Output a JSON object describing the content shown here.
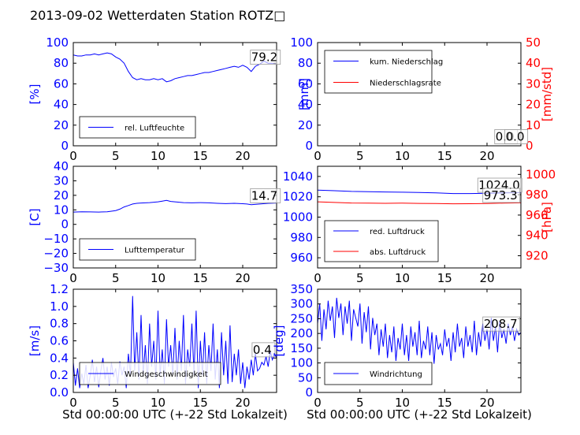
{
  "title": "2013-09-02 Wetterdaten Station ROTZ□",
  "colors": {
    "blue": "#0000ff",
    "red": "#ff0000",
    "black": "#000000"
  },
  "chart_data": [
    {
      "type": "line",
      "id": "humidity",
      "ylabel": "[%]",
      "xlim": [
        0,
        24
      ],
      "ylim": [
        0,
        100
      ],
      "xticks": [
        "0",
        "5",
        "10",
        "15",
        "20"
      ],
      "yticks": [
        "0",
        "20",
        "40",
        "60",
        "80",
        "100"
      ],
      "legend": {
        "position": "lower-left",
        "entries": [
          "rel. Luftfeuchte"
        ]
      },
      "annotations": [
        {
          "text": "79.2",
          "x": 21,
          "y": 82
        }
      ],
      "series": [
        {
          "name": "rel. Luftfeuchte",
          "color": "#0000ff",
          "x": [
            0,
            0.5,
            1,
            1.5,
            2,
            2.5,
            3,
            3.5,
            4,
            4.5,
            5,
            5.5,
            6,
            6.5,
            7,
            7.5,
            8,
            8.5,
            9,
            9.5,
            10,
            10.5,
            11,
            11.5,
            12,
            12.5,
            13,
            13.5,
            14,
            14.5,
            15,
            15.5,
            16,
            16.5,
            17,
            17.5,
            18,
            18.5,
            19,
            19.5,
            20,
            20.5,
            21,
            21.5,
            22,
            22.5,
            23,
            23.5,
            24
          ],
          "y": [
            88,
            87,
            87,
            88,
            88,
            89,
            88,
            89,
            90,
            89,
            86,
            84,
            80,
            72,
            66,
            64,
            65,
            64,
            64,
            65,
            64,
            65,
            62,
            63,
            65,
            66,
            67,
            68,
            68,
            69,
            70,
            71,
            71,
            72,
            73,
            74,
            75,
            76,
            77,
            76,
            78,
            76,
            72,
            77,
            79,
            82,
            80,
            80,
            79
          ]
        }
      ]
    },
    {
      "type": "line",
      "id": "precipitation",
      "ylabel": "[mm]",
      "y2label": "[mm/std]",
      "xlim": [
        0,
        24
      ],
      "ylim": [
        0,
        100
      ],
      "y2lim": [
        0,
        50
      ],
      "xticks": [
        "0",
        "5",
        "10",
        "15",
        "20"
      ],
      "yticks": [
        "0",
        "20",
        "40",
        "60",
        "80",
        "100"
      ],
      "y2ticks": [
        "0",
        "10",
        "20",
        "30",
        "40",
        "50"
      ],
      "legend": {
        "position": "upper-left",
        "entries": [
          "kum. Niederschlag",
          "Niederschlagsrate"
        ]
      },
      "annotations": [
        {
          "text": "0.0",
          "x": 21,
          "y": 5
        },
        {
          "text": "0.0",
          "x": 22.2,
          "y": 5
        }
      ],
      "series": [
        {
          "name": "kum. Niederschlag",
          "color": "#0000ff",
          "x": [
            0,
            24
          ],
          "y": [
            0,
            0
          ]
        },
        {
          "name": "Niederschlagsrate",
          "color": "#ff0000",
          "x": [
            0,
            24
          ],
          "y": [
            0,
            0
          ]
        }
      ]
    },
    {
      "type": "line",
      "id": "temperature",
      "ylabel": "[C]",
      "xlim": [
        0,
        24
      ],
      "ylim": [
        -30,
        40
      ],
      "xticks": [
        "0",
        "5",
        "10",
        "15",
        "20"
      ],
      "yticks": [
        "−30",
        "−20",
        "−10",
        "0",
        "10",
        "20",
        "30",
        "40"
      ],
      "legend": {
        "position": "lower-left",
        "entries": [
          "Lufttemperatur"
        ]
      },
      "annotations": [
        {
          "text": "14.7",
          "x": 21,
          "y": 17
        }
      ],
      "series": [
        {
          "name": "Lufttemperatur",
          "color": "#0000ff",
          "x": [
            0,
            1,
            2,
            3,
            4,
            5,
            5.5,
            6,
            6.5,
            7,
            7.5,
            8,
            9,
            10,
            10.5,
            11,
            11.5,
            12,
            13,
            14,
            15,
            16,
            17,
            18,
            19,
            20,
            20.5,
            21,
            22,
            23,
            24
          ],
          "y": [
            8.5,
            8.7,
            8.6,
            8.5,
            8.7,
            9.5,
            10.5,
            12,
            13,
            14,
            14.5,
            14.7,
            15,
            15.5,
            16,
            16.5,
            15.8,
            15.5,
            15,
            14.8,
            15,
            14.8,
            14.5,
            14.3,
            14.5,
            14.2,
            14,
            13.5,
            14,
            14.5,
            14.7
          ]
        }
      ]
    },
    {
      "type": "line",
      "id": "pressure",
      "y2label": "[hPa]",
      "xlim": [
        0,
        24
      ],
      "ylim": [
        950,
        1050
      ],
      "y2lim": [
        908,
        1008
      ],
      "xticks": [
        "0",
        "5",
        "10",
        "15",
        "20"
      ],
      "yticks": [
        "960",
        "980",
        "1000",
        "1020",
        "1040"
      ],
      "y2ticks": [
        "920",
        "940",
        "960",
        "980",
        "1000"
      ],
      "legend": {
        "position": "lower-left",
        "entries": [
          "red. Luftdruck",
          "abs. Luftdruck"
        ]
      },
      "annotations": [
        {
          "text": "1024.0",
          "x": 19,
          "y": 1027.5
        },
        {
          "text": "973.3",
          "x": 19.6,
          "y": 1017.5
        }
      ],
      "series": [
        {
          "name": "red. Luftdruck",
          "color": "#0000ff",
          "x": [
            0,
            2,
            4,
            6,
            8,
            10,
            12,
            14,
            16,
            18,
            20,
            22,
            24
          ],
          "y": [
            1026.5,
            1026,
            1025.3,
            1025,
            1024.7,
            1024.5,
            1024.3,
            1023.8,
            1023.2,
            1023.2,
            1023.5,
            1023.8,
            1024
          ]
        },
        {
          "name": "abs. Luftdruck",
          "color": "#ff0000",
          "x": [
            0,
            2,
            4,
            6,
            8,
            10,
            12,
            14,
            16,
            18,
            20,
            22,
            24
          ],
          "y": [
            1015,
            1014.4,
            1013.9,
            1013.8,
            1013.6,
            1013.8,
            1013.5,
            1013.3,
            1013.1,
            1013.2,
            1013.3,
            1013.8,
            1014
          ]
        }
      ]
    },
    {
      "type": "line",
      "id": "windspeed",
      "ylabel": "[m/s]",
      "xlabel": "Std 00:00:00 UTC (+-22 Std Lokalzeit)",
      "xlim": [
        0,
        24
      ],
      "ylim": [
        0,
        1.2
      ],
      "xticks": [
        "0",
        "5",
        "10",
        "15",
        "20"
      ],
      "yticks": [
        "0.0",
        "0.2",
        "0.4",
        "0.6",
        "0.8",
        "1.0",
        "1.2"
      ],
      "legend": {
        "position": "lower-left",
        "entries": [
          "Windgeschwindigkeit"
        ]
      },
      "annotations": [
        {
          "text": "0.4",
          "x": 21.2,
          "y": 0.45
        }
      ],
      "series": [
        {
          "name": "Windgeschwindigkeit",
          "color": "#0000ff",
          "x": [
            0,
            0.25,
            0.5,
            0.75,
            1,
            1.25,
            1.5,
            1.75,
            2,
            2.25,
            2.5,
            2.75,
            3,
            3.25,
            3.5,
            3.75,
            4,
            4.25,
            4.5,
            4.75,
            5,
            5.25,
            5.5,
            5.75,
            6,
            6.25,
            6.5,
            6.75,
            7,
            7.25,
            7.5,
            7.75,
            8,
            8.25,
            8.5,
            8.75,
            9,
            9.25,
            9.5,
            9.75,
            10,
            10.25,
            10.5,
            10.75,
            11,
            11.25,
            11.5,
            11.75,
            12,
            12.25,
            12.5,
            12.75,
            13,
            13.25,
            13.5,
            13.75,
            14,
            14.25,
            14.5,
            14.75,
            15,
            15.25,
            15.5,
            15.75,
            16,
            16.25,
            16.5,
            16.75,
            17,
            17.25,
            17.5,
            17.75,
            18,
            18.25,
            18.5,
            18.75,
            19,
            19.25,
            19.5,
            19.75,
            20,
            20.25,
            20.5,
            20.75,
            21,
            21.25,
            21.5,
            21.75,
            22,
            22.25,
            22.5,
            22.75,
            23,
            23.25,
            23.5,
            23.75,
            24
          ],
          "y": [
            0.35,
            0.08,
            0.28,
            0.05,
            0.22,
            0.1,
            0.32,
            0.05,
            0.2,
            0.38,
            0.12,
            0.3,
            0.06,
            0.25,
            0.4,
            0.15,
            0.3,
            0.08,
            0.35,
            0.18,
            0.28,
            0.1,
            0.36,
            0.2,
            0.3,
            0.05,
            0.45,
            0.2,
            1.12,
            0.25,
            0.7,
            0.15,
            0.9,
            0.2,
            0.55,
            0.1,
            0.8,
            0.3,
            0.6,
            0.15,
            0.95,
            0.2,
            0.5,
            0.1,
            0.85,
            0.3,
            0.55,
            0.2,
            0.75,
            0.15,
            0.6,
            0.25,
            0.9,
            0.1,
            0.5,
            0.3,
            0.8,
            0.2,
            0.95,
            0.05,
            0.6,
            0.2,
            0.7,
            0.1,
            0.55,
            0.25,
            0.8,
            0.15,
            0.5,
            0.05,
            0.7,
            0.2,
            0.6,
            0.1,
            0.78,
            0.12,
            0.45,
            0.2,
            0.5,
            0.1,
            0.35,
            0.05,
            0.3,
            0.15,
            0.38,
            0.2,
            0.45,
            0.25,
            0.28,
            0.35,
            0.32,
            0.42,
            0.3,
            0.48,
            0.38,
            0.45,
            0.4
          ]
        }
      ]
    },
    {
      "type": "line",
      "id": "winddirection",
      "ylabel": "[deg]",
      "xlabel": "Std 00:00:00 UTC (+-22 Std Lokalzeit)",
      "xlim": [
        0,
        24
      ],
      "ylim": [
        0,
        360
      ],
      "xticks": [
        "0",
        "5",
        "10",
        "15",
        "20"
      ],
      "yticks": [
        "0",
        "50",
        "100",
        "150",
        "200",
        "250",
        "300",
        "350"
      ],
      "legend": {
        "position": "lower-left",
        "entries": [
          "Windrichtung"
        ]
      },
      "annotations": [
        {
          "text": "208.7",
          "x": 19.6,
          "y": 225
        }
      ],
      "series": [
        {
          "name": "Windrichtung",
          "color": "#0000ff",
          "x": [
            0,
            0.25,
            0.5,
            0.75,
            1,
            1.25,
            1.5,
            1.75,
            2,
            2.25,
            2.5,
            2.75,
            3,
            3.25,
            3.5,
            3.75,
            4,
            4.25,
            4.5,
            4.75,
            5,
            5.25,
            5.5,
            5.75,
            6,
            6.25,
            6.5,
            6.75,
            7,
            7.25,
            7.5,
            7.75,
            8,
            8.25,
            8.5,
            8.75,
            9,
            9.25,
            9.5,
            9.75,
            10,
            10.25,
            10.5,
            10.75,
            11,
            11.25,
            11.5,
            11.75,
            12,
            12.25,
            12.5,
            12.75,
            13,
            13.25,
            13.5,
            13.75,
            14,
            14.25,
            14.5,
            14.75,
            15,
            15.25,
            15.5,
            15.75,
            16,
            16.25,
            16.5,
            16.75,
            17,
            17.25,
            17.5,
            17.75,
            18,
            18.25,
            18.5,
            18.75,
            19,
            19.25,
            19.5,
            19.75,
            20,
            20.25,
            20.5,
            20.75,
            21,
            21.25,
            21.5,
            21.75,
            22,
            22.25,
            22.5,
            22.75,
            23,
            23.25,
            23.5,
            23.75,
            24
          ],
          "y": [
            240,
            310,
            180,
            290,
            220,
            320,
            250,
            300,
            190,
            330,
            260,
            310,
            200,
            300,
            240,
            320,
            180,
            290,
            260,
            230,
            310,
            170,
            280,
            210,
            300,
            150,
            260,
            200,
            240,
            130,
            220,
            160,
            240,
            120,
            200,
            140,
            230,
            110,
            190,
            150,
            240,
            130,
            200,
            110,
            230,
            160,
            210,
            130,
            250,
            120,
            180,
            150,
            230,
            130,
            210,
            100,
            200,
            150,
            170,
            130,
            220,
            160,
            190,
            110,
            210,
            140,
            240,
            160,
            190,
            120,
            230,
            160,
            200,
            140,
            250,
            130,
            210,
            160,
            240,
            180,
            220,
            150,
            260,
            180,
            230,
            140,
            250,
            190,
            220,
            170,
            240,
            200,
            230,
            180,
            220,
            200,
            209
          ]
        }
      ]
    }
  ]
}
